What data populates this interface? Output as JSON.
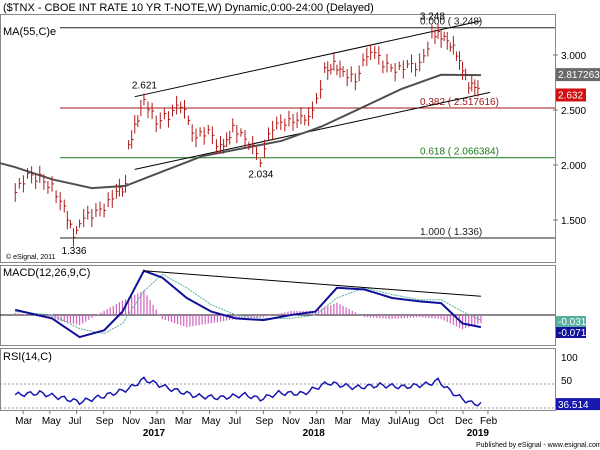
{
  "header": {
    "title": "($TNX - CBOE INT RATE 10 YR T-NOTE,W) Dynamic,0:00-24:00 (Delayed)",
    "ma_label": "MA(55,C)e"
  },
  "footer": {
    "esignal_note": "© eSignal, 2011",
    "published": "Published by eSignal - www.esignal.com"
  },
  "colors": {
    "price": "#b01818",
    "ma": "#505050",
    "fib": "#a01818",
    "fib618": "#1a7a1a",
    "macd": "#10109a",
    "signal": "#55b0a0",
    "hist": "#d060c0",
    "rsi": "#1818b0",
    "trend": "#000000"
  },
  "chart_data": [
    {
      "type": "line",
      "name": "price",
      "title": "($TNX - CBOE INT RATE 10 YR T-NOTE,W) Dynamic,0:00-24:00 (Delayed)",
      "x": [
        "2016-02-26",
        "2016-03-25",
        "2016-04-22",
        "2016-05-20",
        "2016-06-17",
        "2016-07-08",
        "2016-07-22",
        "2016-08-19",
        "2016-09-16",
        "2016-10-14",
        "2016-11-04",
        "2016-11-11",
        "2016-11-25",
        "2016-12-16",
        "2017-01-13",
        "2017-02-10",
        "2017-03-10",
        "2017-04-14",
        "2017-05-12",
        "2017-06-09",
        "2017-06-23",
        "2017-07-07",
        "2017-08-04",
        "2017-09-08",
        "2017-10-06",
        "2017-11-03",
        "2017-12-01",
        "2018-01-05",
        "2018-02-02",
        "2018-02-23",
        "2018-03-16",
        "2018-04-13",
        "2018-05-18",
        "2018-06-15",
        "2018-07-13",
        "2018-08-10",
        "2018-09-07",
        "2018-10-05",
        "2018-10-19",
        "2018-11-09",
        "2018-11-30",
        "2018-12-14",
        "2018-12-28",
        "2019-01-11",
        "2019-01-25"
      ],
      "values": [
        1.75,
        1.9,
        1.88,
        1.8,
        1.62,
        1.36,
        1.5,
        1.55,
        1.6,
        1.75,
        1.8,
        2.15,
        2.35,
        2.6,
        2.4,
        2.45,
        2.55,
        2.25,
        2.3,
        2.15,
        2.2,
        2.35,
        2.25,
        2.05,
        2.35,
        2.38,
        2.4,
        2.47,
        2.85,
        2.92,
        2.85,
        2.78,
        3.06,
        2.92,
        2.85,
        2.9,
        2.9,
        3.18,
        3.2,
        3.14,
        3.02,
        2.89,
        2.72,
        2.7,
        2.632
      ],
      "ma": {
        "label": "MA(55,C)e",
        "last": "2.817263",
        "x": [
          "2015-12-04",
          "2016-02-26",
          "2016-05-20",
          "2016-08-19",
          "2016-11-04",
          "2017-01-27",
          "2017-04-28",
          "2017-07-28",
          "2017-10-27",
          "2018-01-26",
          "2018-04-27",
          "2018-07-27",
          "2018-10-26",
          "2019-01-25"
        ],
        "values": [
          2.07,
          1.98,
          1.87,
          1.79,
          1.81,
          1.94,
          2.08,
          2.15,
          2.22,
          2.35,
          2.52,
          2.69,
          2.82,
          2.817263
        ]
      },
      "last_price": "2.632",
      "ylim": [
        1.18,
        3.38
      ],
      "yticks": [
        "3.000",
        "2.500",
        "2.000",
        "1.500"
      ],
      "swing_labels": [
        {
          "x": "2016-07-08",
          "y": 1.336,
          "text": "1.336"
        },
        {
          "x": "2016-12-16",
          "y": 2.621,
          "text": "2.621"
        },
        {
          "x": "2017-09-08",
          "y": 2.034,
          "text": "2.034"
        },
        {
          "x": "2018-10-05",
          "y": 3.248,
          "text": "3.248"
        }
      ],
      "fib_levels": [
        {
          "label": "0.000 ( 3.248)",
          "value": 3.248
        },
        {
          "label": "0.382 ( 2.517616)",
          "value": 2.517616
        },
        {
          "label": "0.618 ( 2.066384)",
          "value": 2.066384
        },
        {
          "label": "1.000 ( 1.336)",
          "value": 1.336
        }
      ],
      "trendlines": [
        {
          "from": {
            "x": "2016-11-25",
            "y": 2.621
          },
          "to": {
            "x": "2019-01-25",
            "y": 3.31
          }
        },
        {
          "from": {
            "x": "2016-11-25",
            "y": 1.96
          },
          "to": {
            "x": "2019-02-15",
            "y": 2.66
          }
        }
      ],
      "x_ticks": [
        "Mar",
        "May",
        "Jul",
        "Sep",
        "Nov",
        "Jan",
        "Mar",
        "May",
        "Jul",
        "Sep",
        "Nov",
        "Jan",
        "Mar",
        "May",
        "Jul",
        "Aug",
        "Oct",
        "Dec",
        "Feb"
      ],
      "year_labels": [
        "2017",
        "2018",
        "2019"
      ]
    },
    {
      "type": "line",
      "name": "macd",
      "label": "MACD(12,26,9,C)",
      "series": [
        {
          "name": "macd",
          "x": [
            "2016-02-26",
            "2016-05-20",
            "2016-07-22",
            "2016-09-16",
            "2016-10-28",
            "2016-12-16",
            "2017-01-27",
            "2017-03-24",
            "2017-05-19",
            "2017-07-14",
            "2017-09-15",
            "2017-11-17",
            "2018-01-12",
            "2018-03-02",
            "2018-05-04",
            "2018-07-06",
            "2018-09-07",
            "2018-10-26",
            "2018-12-14",
            "2019-01-25"
          ],
          "values": [
            0.03,
            -0.02,
            -0.13,
            -0.09,
            0.02,
            0.26,
            0.22,
            0.1,
            0.02,
            -0.02,
            -0.03,
            0.0,
            0.02,
            0.16,
            0.15,
            0.1,
            0.08,
            0.07,
            -0.05,
            -0.071
          ]
        },
        {
          "name": "signal",
          "x": [
            "2016-02-26",
            "2016-05-20",
            "2016-07-22",
            "2016-09-16",
            "2016-10-28",
            "2016-12-16",
            "2017-01-27",
            "2017-03-24",
            "2017-05-19",
            "2017-07-14",
            "2017-09-15",
            "2017-11-17",
            "2018-01-12",
            "2018-03-02",
            "2018-05-04",
            "2018-07-06",
            "2018-09-07",
            "2018-10-26",
            "2018-12-14",
            "2019-01-25"
          ],
          "values": [
            0.02,
            0.0,
            -0.08,
            -0.11,
            -0.05,
            0.14,
            0.24,
            0.16,
            0.06,
            0.0,
            -0.02,
            -0.02,
            0.0,
            0.1,
            0.16,
            0.12,
            0.09,
            0.09,
            0.02,
            -0.031
          ]
        }
      ],
      "last_values": [
        "-0.031",
        "-0.071"
      ],
      "trendline": {
        "from": {
          "x": "2016-12-16",
          "y": 0.26
        },
        "to": {
          "x": "2019-01-25",
          "y": 0.11
        }
      }
    },
    {
      "type": "line",
      "name": "rsi",
      "label": "RSI(14,C)",
      "x": [
        "2016-02-26",
        "2016-04-22",
        "2016-06-17",
        "2016-07-22",
        "2016-09-16",
        "2016-11-11",
        "2016-12-16",
        "2017-02-10",
        "2017-04-14",
        "2017-06-09",
        "2017-08-04",
        "2017-09-08",
        "2017-10-20",
        "2017-12-15",
        "2018-02-09",
        "2018-04-13",
        "2018-06-08",
        "2018-08-03",
        "2018-09-28",
        "2018-10-19",
        "2018-11-16",
        "2018-12-14",
        "2019-01-04",
        "2019-01-25"
      ],
      "values": [
        52,
        55,
        46,
        40,
        50,
        62,
        78,
        63,
        50,
        47,
        52,
        45,
        55,
        54,
        72,
        64,
        68,
        65,
        70,
        76,
        58,
        45,
        38,
        36.514
      ],
      "last": "36.514",
      "yticks": [
        "100",
        "50",
        "0"
      ],
      "ylim": [
        0,
        100
      ]
    }
  ]
}
